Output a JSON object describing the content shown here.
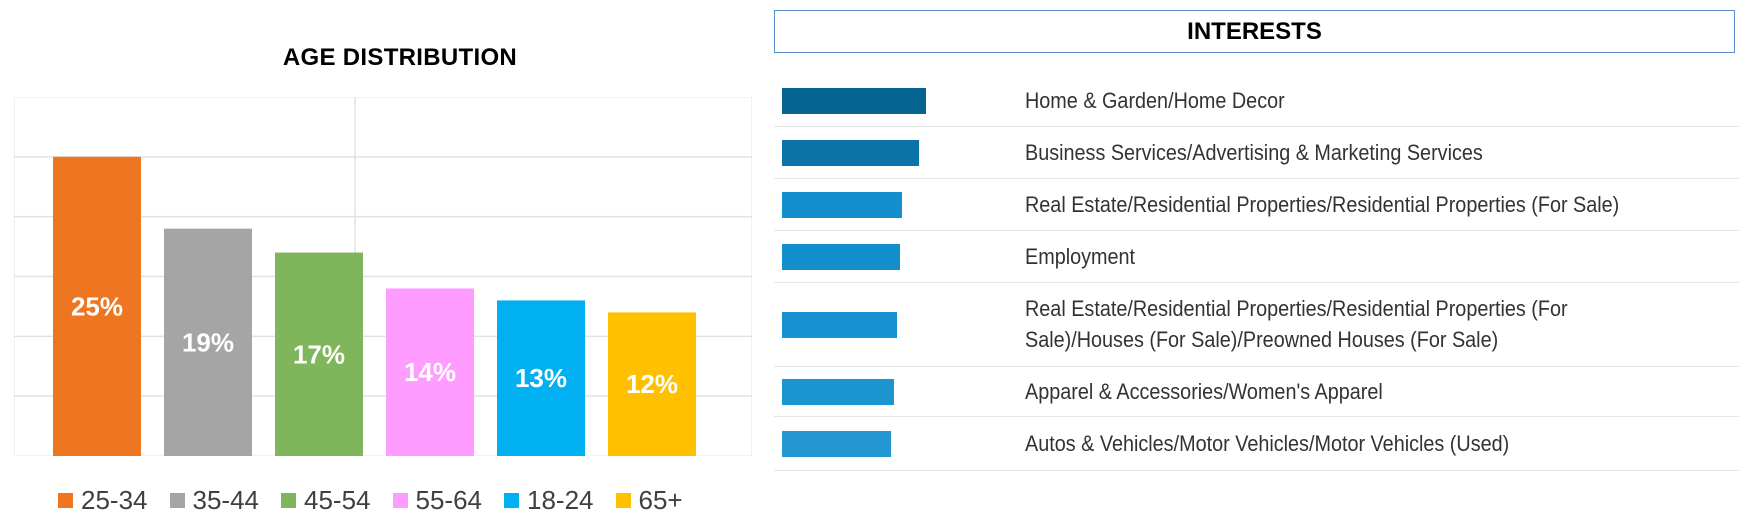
{
  "age_panel": {
    "title": "AGE DISTRIBUTION"
  },
  "interests_panel": {
    "title": "INTERESTS"
  },
  "chart_data": [
    {
      "type": "bar",
      "title": "AGE DISTRIBUTION",
      "categories": [
        "25-34",
        "35-44",
        "45-54",
        "55-64",
        "18-24",
        "65+"
      ],
      "values": [
        25,
        19,
        17,
        14,
        13,
        12
      ],
      "value_labels": [
        "25%",
        "19%",
        "17%",
        "14%",
        "13%",
        "12%"
      ],
      "colors": [
        "#ee7621",
        "#a5a5a5",
        "#7fb65b",
        "#ff9cff",
        "#00b0f0",
        "#ffc000"
      ],
      "ylim": [
        0,
        30
      ],
      "grid": true,
      "legend": "bottom"
    },
    {
      "type": "bar",
      "orientation": "horizontal",
      "title": "INTERESTS",
      "categories": [
        "Home & Garden/Home Decor",
        "Business Services/Advertising & Marketing Services",
        "Real Estate/Residential Properties/Residential Properties (For Sale)",
        "Employment",
        "Real Estate/Residential Properties/Residential Properties (For Sale)/Houses (For Sale)/Preowned Houses (For Sale)",
        "Apparel & Accessories/Women's Apparel",
        "Autos & Vehicles/Motor Vehicles/Motor Vehicles (Used)"
      ],
      "values": [
        100,
        95,
        83,
        82,
        80,
        78,
        76
      ],
      "colors": [
        "#056492",
        "#0b73a8",
        "#148fce",
        "#148fce",
        "#1990cf",
        "#1d95d1",
        "#2497d2"
      ],
      "grid": false
    }
  ]
}
